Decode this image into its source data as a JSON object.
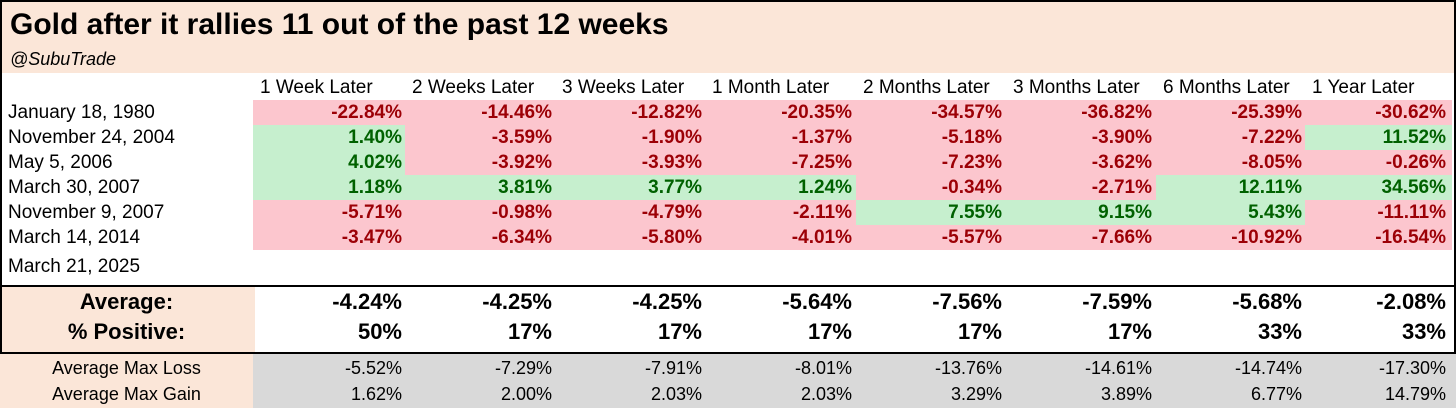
{
  "title": "Gold after it rallies 11 out of the past 12 weeks",
  "handle": "@SubuTrade",
  "chart_data": {
    "type": "table",
    "columns": [
      "1 Week Later",
      "2 Weeks Later",
      "3 Weeks Later",
      "1 Month Later",
      "2 Months Later",
      "3 Months Later",
      "6 Months Later",
      "1 Year Later"
    ],
    "rows": [
      {
        "date": "January 18, 1980",
        "values": [
          "-22.84%",
          "-14.46%",
          "-12.82%",
          "-20.35%",
          "-34.57%",
          "-36.82%",
          "-25.39%",
          "-30.62%"
        ]
      },
      {
        "date": "November 24, 2004",
        "values": [
          "1.40%",
          "-3.59%",
          "-1.90%",
          "-1.37%",
          "-5.18%",
          "-3.90%",
          "-7.22%",
          "11.52%"
        ]
      },
      {
        "date": "May 5, 2006",
        "values": [
          "4.02%",
          "-3.92%",
          "-3.93%",
          "-7.25%",
          "-7.23%",
          "-3.62%",
          "-8.05%",
          "-0.26%"
        ]
      },
      {
        "date": "March 30, 2007",
        "values": [
          "1.18%",
          "3.81%",
          "3.77%",
          "1.24%",
          "-0.34%",
          "-2.71%",
          "12.11%",
          "34.56%"
        ]
      },
      {
        "date": "November 9, 2007",
        "values": [
          "-5.71%",
          "-0.98%",
          "-4.79%",
          "-2.11%",
          "7.55%",
          "9.15%",
          "5.43%",
          "-11.11%"
        ]
      },
      {
        "date": "March 14, 2014",
        "values": [
          "-3.47%",
          "-6.34%",
          "-5.80%",
          "-4.01%",
          "-5.57%",
          "-7.66%",
          "-10.92%",
          "-16.54%"
        ]
      },
      {
        "date": "March 21, 2025",
        "values": [
          "",
          "",
          "",
          "",
          "",
          "",
          "",
          ""
        ]
      }
    ],
    "summary": [
      {
        "label": "Average:",
        "values": [
          "-4.24%",
          "-4.25%",
          "-4.25%",
          "-5.64%",
          "-7.56%",
          "-7.59%",
          "-5.68%",
          "-2.08%"
        ]
      },
      {
        "label": "% Positive:",
        "values": [
          "50%",
          "17%",
          "17%",
          "17%",
          "17%",
          "17%",
          "33%",
          "33%"
        ]
      }
    ],
    "max_stats": [
      {
        "label": "Average Max Loss",
        "values": [
          "-5.52%",
          "-7.29%",
          "-7.91%",
          "-8.01%",
          "-13.76%",
          "-14.61%",
          "-14.74%",
          "-17.30%"
        ]
      },
      {
        "label": "Average Max Gain",
        "values": [
          "1.62%",
          "2.00%",
          "2.03%",
          "2.03%",
          "3.29%",
          "3.89%",
          "6.77%",
          "14.79%"
        ]
      }
    ]
  },
  "colors": {
    "header_bg": "#fbe6d8",
    "negative_bg": "#fcc6ce",
    "negative_text": "#9c0006",
    "positive_bg": "#c6efce",
    "positive_text": "#006100",
    "stats_bg": "#d9d9d9"
  }
}
